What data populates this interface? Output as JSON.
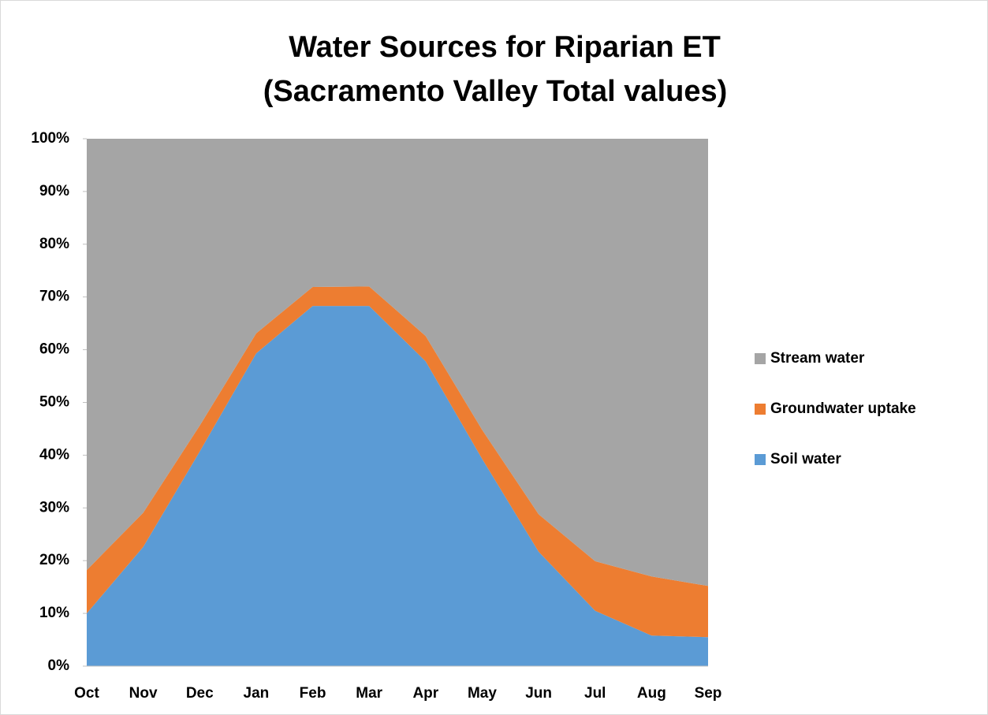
{
  "chart_data": {
    "type": "stacked_area_100",
    "title": "Water Sources for Riparian ET",
    "subtitle": "(Sacramento Valley Total values)",
    "categories": [
      "Oct",
      "Nov",
      "Dec",
      "Jan",
      "Feb",
      "Mar",
      "Apr",
      "May",
      "Jun",
      "Jul",
      "Aug",
      "Sep"
    ],
    "series": [
      {
        "name": "Soil water",
        "color": "#5b9bd5",
        "values": [
          10,
          22.6,
          40.7,
          59.3,
          68.3,
          68.3,
          57.8,
          39.3,
          21.7,
          10.5,
          5.8,
          5.5
        ]
      },
      {
        "name": "Groundwater uptake",
        "color": "#ed7d31",
        "values": [
          8.2,
          6.5,
          4.9,
          3.8,
          3.6,
          3.7,
          4.8,
          5.5,
          7.1,
          9.4,
          11.2,
          9.7
        ]
      },
      {
        "name": "Stream water",
        "color": "#a5a5a5",
        "values": [
          81.8,
          70.9,
          54.4,
          36.9,
          28.1,
          28.0,
          37.4,
          55.2,
          71.2,
          80.1,
          83.0,
          84.8
        ]
      }
    ],
    "ylim": [
      0,
      100
    ],
    "yticks": [
      {
        "value": 0,
        "label": "0%"
      },
      {
        "value": 10,
        "label": "10%"
      },
      {
        "value": 20,
        "label": "20%"
      },
      {
        "value": 30,
        "label": "30%"
      },
      {
        "value": 40,
        "label": "40%"
      },
      {
        "value": 50,
        "label": "50%"
      },
      {
        "value": 60,
        "label": "60%"
      },
      {
        "value": 70,
        "label": "70%"
      },
      {
        "value": 80,
        "label": "80%"
      },
      {
        "value": 90,
        "label": "90%"
      },
      {
        "value": 100,
        "label": "100%"
      }
    ],
    "legend": "right"
  }
}
